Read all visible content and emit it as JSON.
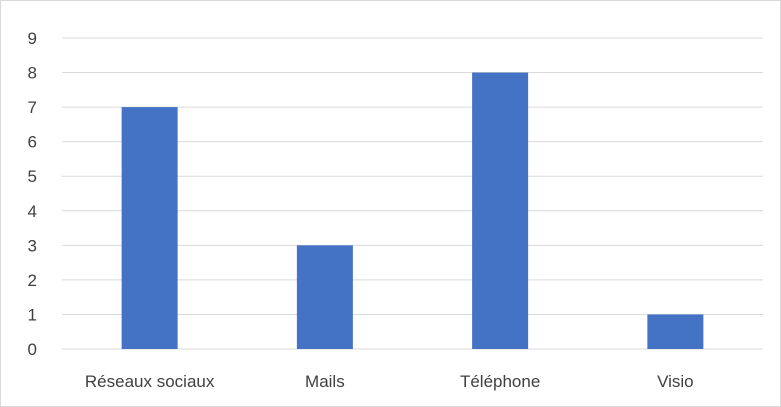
{
  "chart_data": {
    "type": "bar",
    "categories": [
      "Réseaux sociaux",
      "Mails",
      "Téléphone",
      "Visio"
    ],
    "values": [
      7,
      3,
      8,
      1
    ],
    "title": "",
    "xlabel": "",
    "ylabel": "",
    "ylim": [
      0,
      9
    ],
    "yticks": [
      "0",
      "1",
      "2",
      "3",
      "4",
      "5",
      "6",
      "7",
      "8",
      "9"
    ],
    "grid": true,
    "legend": "none",
    "colors": {
      "bar": "#4472c4",
      "grid": "#d9d9d9",
      "text": "#404040"
    }
  }
}
